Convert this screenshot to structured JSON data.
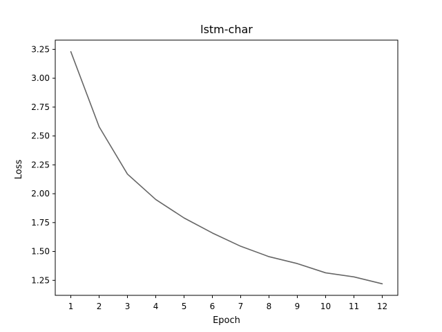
{
  "chart_data": {
    "type": "line",
    "title": "lstm-char",
    "xlabel": "Epoch",
    "ylabel": "Loss",
    "x": [
      1,
      2,
      3,
      4,
      5,
      6,
      7,
      8,
      9,
      10,
      11,
      12
    ],
    "series": [
      {
        "values": [
          3.23,
          2.58,
          2.17,
          1.95,
          1.79,
          1.66,
          1.545,
          1.455,
          1.395,
          1.315,
          1.28,
          1.22
        ],
        "color": "#666666"
      }
    ],
    "xticks": [
      1,
      2,
      3,
      4,
      5,
      6,
      7,
      8,
      9,
      10,
      11,
      12
    ],
    "xtick_labels": [
      "1",
      "2",
      "3",
      "4",
      "5",
      "6",
      "7",
      "8",
      "9",
      "10",
      "11",
      "12"
    ],
    "yticks": [
      1.25,
      1.5,
      1.75,
      2.0,
      2.25,
      2.5,
      2.75,
      3.0,
      3.25
    ],
    "ytick_labels": [
      "1.25",
      "1.50",
      "1.75",
      "2.00",
      "2.25",
      "2.50",
      "2.75",
      "3.00",
      "3.25"
    ],
    "xlim": [
      0.45,
      12.55
    ],
    "ylim": [
      1.12,
      3.33
    ],
    "grid": false,
    "legend": false
  }
}
